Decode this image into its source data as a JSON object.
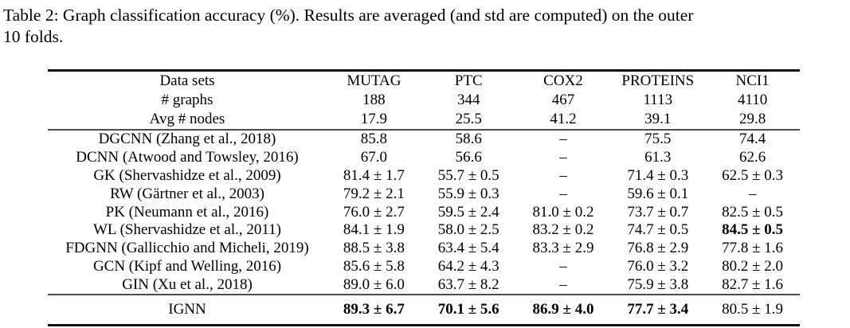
{
  "caption": {
    "line1": "Table 2: Graph classification accuracy (%). Results are averaged (and std are computed) on the outer",
    "line2": "10 folds."
  },
  "table": {
    "header": {
      "rows": [
        {
          "label": "Data sets",
          "values": [
            "MUTAG",
            "PTC",
            "COX2",
            "PROTEINS",
            "NCI1"
          ]
        },
        {
          "label": "# graphs",
          "values": [
            "188",
            "344",
            "467",
            "1113",
            "4110"
          ]
        },
        {
          "label": "Avg # nodes",
          "values": [
            "17.9",
            "25.5",
            "41.2",
            "39.1",
            "29.8"
          ]
        }
      ]
    },
    "body": [
      {
        "label": "DGCNN (Zhang et al., 2018)",
        "values": [
          "85.8",
          "58.6",
          "–",
          "75.5",
          "74.4"
        ]
      },
      {
        "label": "DCNN (Atwood and Towsley, 2016)",
        "values": [
          "67.0",
          "56.6",
          "–",
          "61.3",
          "62.6"
        ]
      },
      {
        "label": "GK (Shervashidze et al., 2009)",
        "values": [
          "81.4 ± 1.7",
          "55.7 ± 0.5",
          "–",
          "71.4 ± 0.3",
          "62.5 ± 0.3"
        ]
      },
      {
        "label": "RW (Gärtner et al., 2003)",
        "values": [
          "79.2 ± 2.1",
          "55.9 ± 0.3",
          "–",
          "59.6 ± 0.1",
          "–"
        ]
      },
      {
        "label": "PK (Neumann et al., 2016)",
        "values": [
          "76.0 ± 2.7",
          "59.5 ± 2.4",
          "81.0 ± 0.2",
          "73.7 ± 0.7",
          "82.5 ± 0.5"
        ]
      },
      {
        "label": "WL (Shervashidze et al., 2011)",
        "values": [
          "84.1 ± 1.9",
          "58.0 ± 2.5",
          "83.2 ± 0.2",
          "74.7 ± 0.5",
          "84.5 ± 0.5"
        ]
      },
      {
        "label": "FDGNN (Gallicchio and Micheli, 2019)",
        "values": [
          "88.5 ± 3.8",
          "63.4 ± 5.4",
          "83.3 ± 2.9",
          "76.8 ± 2.9",
          "77.8 ± 1.6"
        ]
      },
      {
        "label": "GCN (Kipf and Welling, 2016)",
        "values": [
          "85.6 ± 5.8",
          "64.2 ± 4.3",
          "–",
          "76.0 ± 3.2",
          "80.2 ± 2.0"
        ]
      },
      {
        "label": "GIN (Xu et al., 2018)",
        "values": [
          "89.0 ± 6.0",
          "63.7 ± 8.2",
          "–",
          "75.9 ± 3.8",
          "82.7 ± 1.6"
        ]
      }
    ],
    "footer": {
      "label": "IGNN",
      "values": [
        "89.3 ± 6.7",
        "70.1 ± 5.6",
        "86.9 ± 4.0",
        "77.7 ± 3.4",
        "80.5 ± 1.9"
      ]
    }
  }
}
